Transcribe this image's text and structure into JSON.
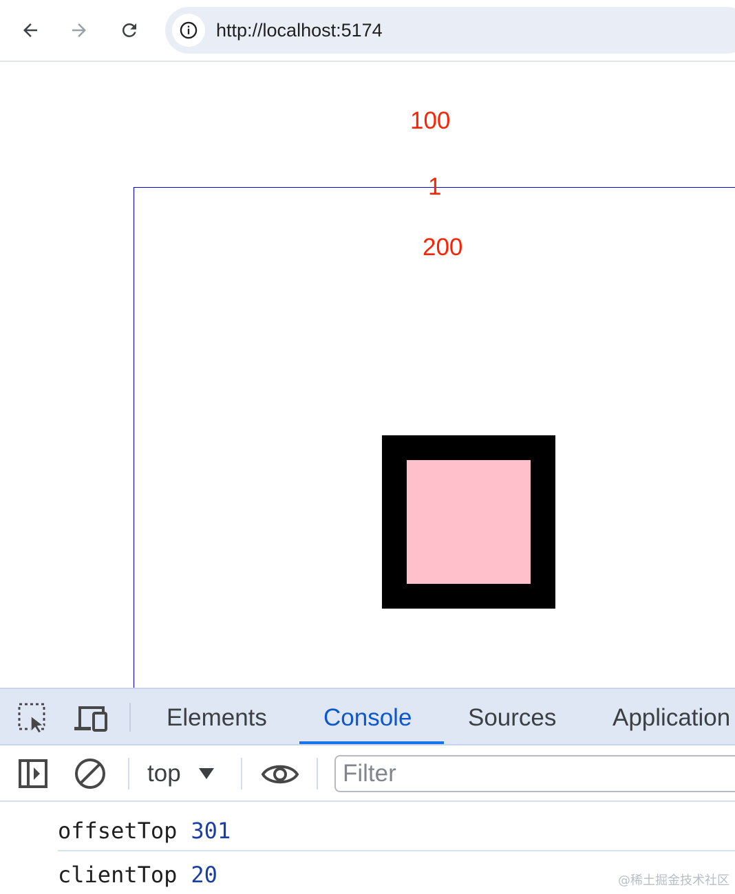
{
  "browser": {
    "url": "http://localhost:5174",
    "icons": {
      "back": "arrow-left-icon",
      "forward": "arrow-right-icon",
      "reload": "reload-icon",
      "site_info": "info-icon"
    }
  },
  "page": {
    "labels": {
      "first": "100",
      "second": "1",
      "third": "200"
    },
    "colors": {
      "label_text": "#ff2200",
      "outer_border": "#0000dd",
      "square_border": "#000000",
      "square_fill": "#ffc0cb"
    }
  },
  "devtools": {
    "tabs": [
      {
        "label": "Elements",
        "active": false
      },
      {
        "label": "Console",
        "active": true
      },
      {
        "label": "Sources",
        "active": false
      },
      {
        "label": "Application",
        "active": false
      }
    ],
    "toolbar": {
      "context": "top",
      "filter_placeholder": "Filter"
    },
    "console": [
      {
        "key": "offsetTop",
        "value": "301"
      },
      {
        "key": "clientTop",
        "value": "20"
      }
    ],
    "icons": {
      "inspect": "inspect-element-icon",
      "device": "device-toolbar-icon",
      "sidebar": "sidebar-toggle-icon",
      "clear": "clear-console-icon",
      "context_dropdown": "dropdown-triangle-icon",
      "live_expression": "eye-icon"
    }
  },
  "watermark": "@稀土掘金技术社区"
}
